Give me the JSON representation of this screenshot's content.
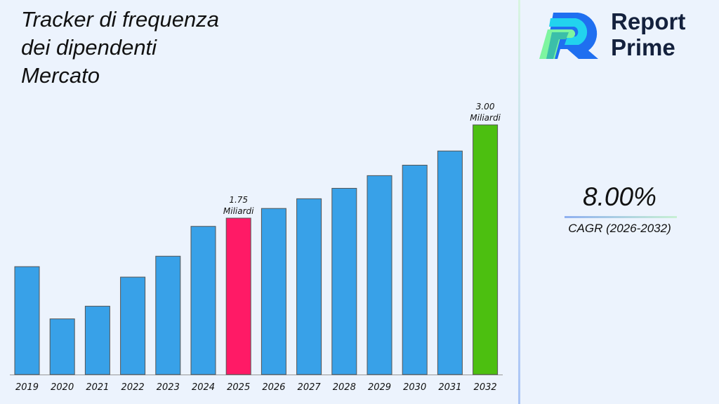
{
  "brand": {
    "name_line1": "Report",
    "name_line2": "Prime"
  },
  "cagr": {
    "value": "8.00%",
    "label": "CAGR (2026-2032)"
  },
  "colors": {
    "default_bar": "#38a1e8",
    "highlight_2025": "#ff1a66",
    "highlight_2032": "#4cbf10"
  },
  "chart_data": {
    "type": "bar",
    "title": "Tracker di frequenza dei dipendenti Mercato",
    "title_lines": [
      "Tracker di frequenza",
      "dei dipendenti",
      "Mercato"
    ],
    "categories": [
      "2019",
      "2020",
      "2021",
      "2022",
      "2023",
      "2024",
      "2025",
      "2026",
      "2027",
      "2028",
      "2029",
      "2030",
      "2031",
      "2032"
    ],
    "values": [
      1.1,
      0.4,
      0.57,
      0.96,
      1.24,
      1.64,
      1.75,
      1.88,
      2.01,
      2.15,
      2.32,
      2.46,
      2.65,
      3.0
    ],
    "unit": "Miliardi",
    "data_labels": [
      {
        "category": "2025",
        "value_text": "1.75",
        "unit": "Miliardi"
      },
      {
        "category": "2032",
        "value_text": "3.00",
        "unit": "Miliardi"
      }
    ],
    "xlabel": "",
    "ylabel": "",
    "grid": false,
    "legend": "none"
  }
}
